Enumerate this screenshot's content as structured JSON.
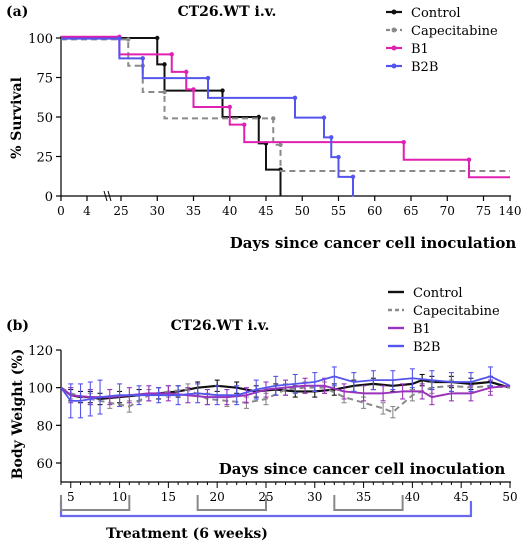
{
  "colors": {
    "control": "#111111",
    "capecitabine": "#8a8a8a",
    "b1_a": "#e020b0",
    "b1_b": "#9933bb",
    "b2b": "#5555ee",
    "treatment": "#6a6aee",
    "bracket": "#888888"
  },
  "chart_data": [
    {
      "type": "line",
      "subtype": "kaplan-meier survival",
      "panel_label": "(a)",
      "title": "CT26.WT i.v.",
      "xlabel": "Days since cancer cell inoculation",
      "ylabel": "% Survival",
      "x_axis_broken": true,
      "x_ticks": [
        "0",
        "4",
        "25",
        "30",
        "35",
        "40",
        "45",
        "50",
        "55",
        "60",
        "65",
        "70",
        "75",
        "140"
      ],
      "y_ticks": [
        "0",
        "25",
        "50",
        "75",
        "100"
      ],
      "ylim": [
        0,
        100
      ],
      "legend_position": "top-right",
      "series": [
        {
          "name": "Control",
          "color_key": "control",
          "dashed": false,
          "x": [
            0,
            30,
            31,
            39,
            44,
            45,
            47
          ],
          "y": [
            100,
            83.3,
            66.7,
            50,
            33.3,
            16.7,
            0
          ]
        },
        {
          "name": "Capecitabine",
          "color_key": "capecitabine",
          "dashed": true,
          "x": [
            0,
            26,
            28,
            31,
            36,
            46,
            47,
            140
          ],
          "y": [
            100,
            83.3,
            66.7,
            50,
            50,
            33.3,
            16.7,
            16.7
          ]
        },
        {
          "name": "B1",
          "color_key": "b1_a",
          "dashed": false,
          "x": [
            0,
            24,
            32,
            34,
            35,
            40,
            42,
            64,
            73,
            140
          ],
          "y": [
            100,
            88.9,
            77.8,
            66.7,
            55.6,
            44.4,
            33.3,
            22.2,
            11.1,
            11.1
          ]
        },
        {
          "name": "B2B",
          "color_key": "b2b",
          "dashed": false,
          "x": [
            0,
            24,
            28,
            37,
            49,
            53,
            54,
            55,
            57
          ],
          "y": [
            100,
            87.5,
            75,
            62.5,
            50,
            37.5,
            25,
            12.5,
            0
          ]
        }
      ]
    },
    {
      "type": "line",
      "subtype": "body weight with error bars",
      "panel_label": "(b)",
      "title": "CT26.WT i.v.",
      "xlabel": "Days since cancer cell inoculation",
      "ylabel": "Body Weight (%)",
      "x_ticks": [
        "5",
        "10",
        "15",
        "20",
        "25",
        "30",
        "35",
        "40",
        "45",
        "50"
      ],
      "y_ticks": [
        "60",
        "80",
        "100",
        "120"
      ],
      "xlim": [
        4,
        50
      ],
      "ylim": [
        50,
        120
      ],
      "legend_position": "top-right",
      "treatment_label": "Treatment (6 weeks)",
      "treatment_range": [
        4,
        46
      ],
      "dosing_brackets": [
        [
          4,
          11
        ],
        [
          18,
          25
        ],
        [
          32,
          39
        ]
      ],
      "series": [
        {
          "name": "Control",
          "color_key": "control",
          "dashed": false,
          "width": 2.2,
          "x": [
            4,
            5,
            6,
            7,
            8,
            10,
            12,
            14,
            16,
            18,
            20,
            22,
            24,
            26,
            28,
            30,
            32,
            34,
            36,
            38,
            40,
            41,
            42,
            44,
            46,
            48,
            50
          ],
          "y": [
            100,
            96,
            95,
            95,
            94,
            95,
            96,
            97,
            98,
            100,
            101,
            100,
            98,
            99,
            98,
            98,
            99,
            101,
            102,
            101,
            102,
            104,
            103,
            103,
            102,
            103,
            100
          ],
          "err": [
            0,
            3,
            3,
            3,
            3,
            3,
            3,
            3,
            3,
            3,
            3,
            3,
            3,
            3,
            3,
            3,
            3,
            3,
            3,
            3,
            3,
            3,
            3,
            3,
            3,
            3,
            0
          ]
        },
        {
          "name": "Capecitabine",
          "color_key": "capecitabine",
          "dashed": true,
          "width": 2,
          "x": [
            4,
            5,
            7,
            9,
            11,
            13,
            15,
            17,
            19,
            21,
            23,
            25,
            27,
            29,
            31,
            33,
            35,
            37,
            38,
            40,
            42,
            44,
            46,
            48,
            50
          ],
          "y": [
            100,
            97,
            94,
            92,
            90,
            96,
            98,
            99,
            94,
            93,
            92,
            94,
            99,
            100,
            100,
            95,
            92,
            89,
            87,
            96,
            100,
            101,
            100,
            101,
            100
          ],
          "err": [
            0,
            3,
            3,
            3,
            3,
            3,
            3,
            3,
            3,
            3,
            3,
            3,
            3,
            3,
            3,
            3,
            3,
            3,
            3,
            3,
            3,
            3,
            3,
            3,
            0
          ]
        },
        {
          "name": "B1",
          "color_key": "b1_b",
          "dashed": false,
          "width": 2,
          "x": [
            4,
            5,
            7,
            9,
            11,
            13,
            15,
            17,
            19,
            21,
            23,
            25,
            27,
            29,
            31,
            33,
            35,
            37,
            39,
            41,
            42,
            44,
            46,
            48,
            50
          ],
          "y": [
            100,
            96,
            95,
            95,
            96,
            97,
            97,
            96,
            95,
            95,
            96,
            99,
            100,
            101,
            101,
            98,
            97,
            97,
            98,
            98,
            95,
            97,
            97,
            100,
            101
          ],
          "err": [
            0,
            4,
            4,
            4,
            4,
            4,
            4,
            4,
            4,
            4,
            4,
            4,
            4,
            4,
            4,
            4,
            4,
            4,
            4,
            4,
            4,
            4,
            4,
            4,
            0
          ]
        },
        {
          "name": "B2B",
          "color_key": "b2b",
          "dashed": false,
          "width": 1.8,
          "x": [
            4,
            5,
            6,
            7,
            8,
            10,
            12,
            14,
            16,
            18,
            20,
            22,
            24,
            26,
            28,
            30,
            32,
            34,
            36,
            38,
            40,
            42,
            44,
            46,
            48,
            50
          ],
          "y": [
            100,
            93,
            93,
            94,
            95,
            96,
            96,
            96,
            96,
            97,
            96,
            96,
            99,
            101,
            102,
            103,
            106,
            103,
            104,
            104,
            105,
            104,
            103,
            103,
            106,
            101
          ],
          "err": [
            0,
            9,
            9,
            9,
            9,
            6,
            5,
            4,
            5,
            5,
            5,
            5,
            5,
            5,
            5,
            5,
            5,
            5,
            5,
            5,
            5,
            5,
            5,
            5,
            5,
            0
          ]
        }
      ]
    }
  ]
}
